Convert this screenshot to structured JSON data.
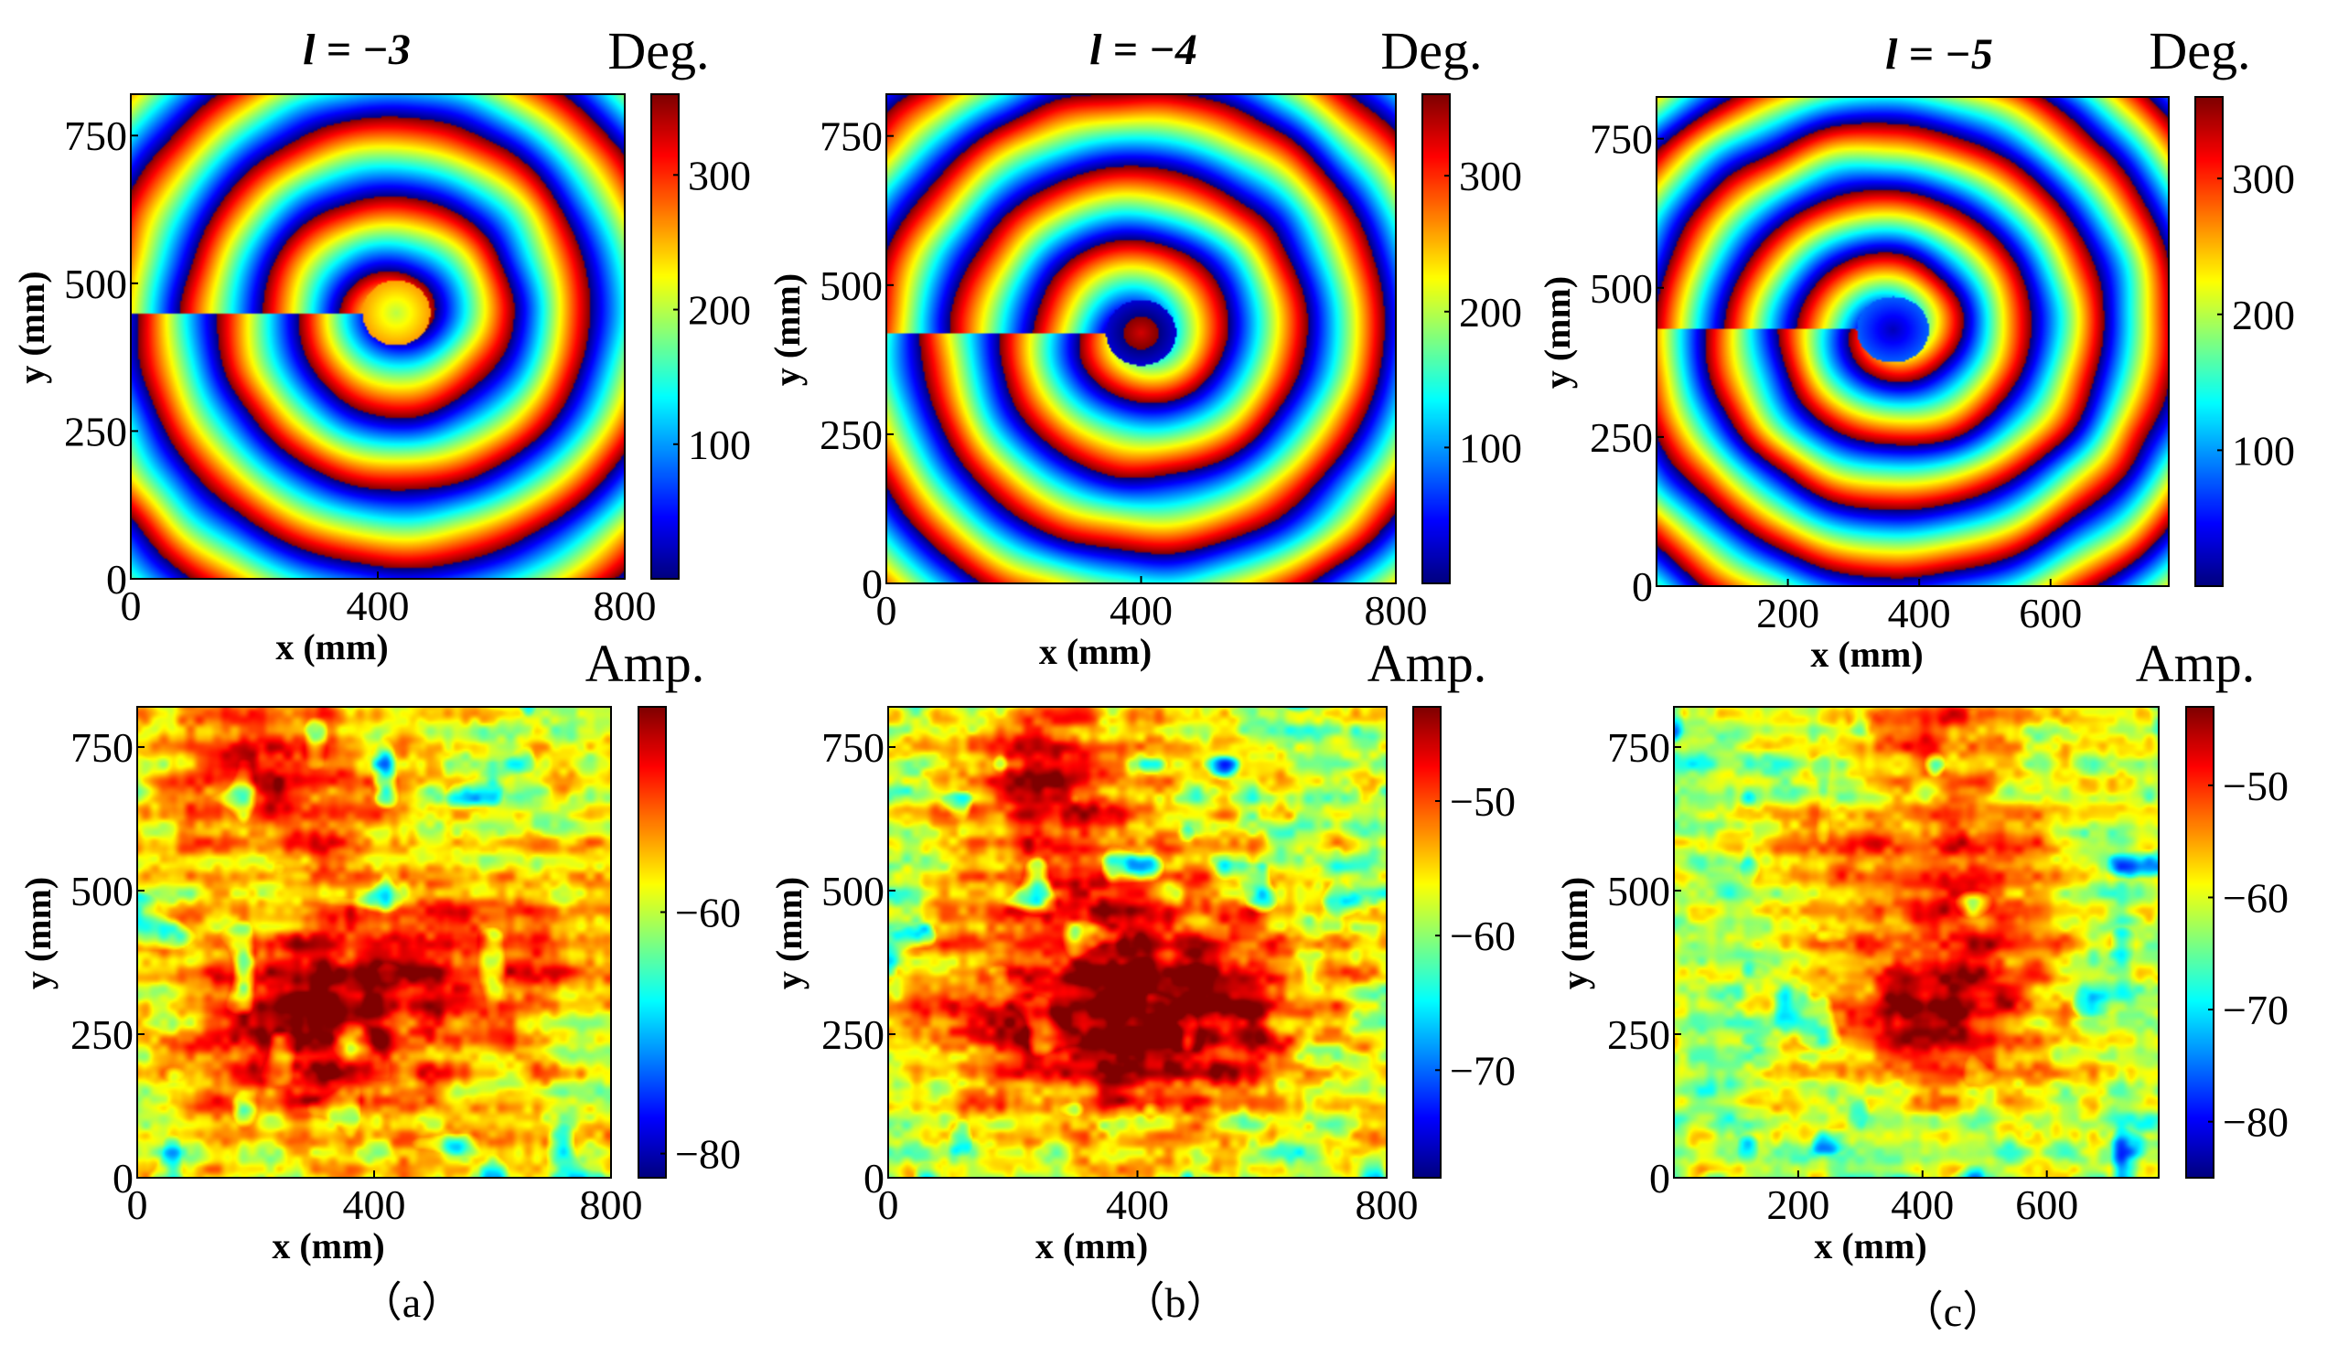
{
  "figure": {
    "panel_captions": [
      "（a）",
      "（b）",
      "（c）"
    ]
  },
  "colormap": {
    "name": "jet",
    "stops": [
      "#00007f",
      "#0000ff",
      "#007fff",
      "#00ffff",
      "#7fff7f",
      "#ffff00",
      "#ff7f00",
      "#ff0000",
      "#7f0000"
    ]
  },
  "chart_data": [
    {
      "type": "heatmap",
      "title": "l = −3",
      "colorbar_label": "Deg.",
      "xlabel": "x (mm)",
      "ylabel": "y (mm)",
      "xlim": [
        0,
        800
      ],
      "ylim": [
        0,
        820
      ],
      "xticks": [
        0,
        400,
        800
      ],
      "yticks": [
        0,
        250,
        500,
        750
      ],
      "clim": [
        0,
        360
      ],
      "cticks": [
        100,
        200,
        300
      ],
      "quantity": "phase",
      "pattern": {
        "center_x": 430,
        "center_y": 450,
        "ring_period_mm": 130,
        "spiral_turns": -3,
        "center_value": 200
      }
    },
    {
      "type": "heatmap",
      "title": "l = −4",
      "colorbar_label": "Deg.",
      "xlabel": "x (mm)",
      "ylabel": "y (mm)",
      "xlim": [
        0,
        800
      ],
      "ylim": [
        0,
        820
      ],
      "xticks": [
        0,
        400,
        800
      ],
      "yticks": [
        0,
        250,
        500,
        750
      ],
      "clim": [
        0,
        360
      ],
      "cticks": [
        100,
        200,
        300
      ],
      "quantity": "phase",
      "pattern": {
        "center_x": 400,
        "center_y": 420,
        "ring_period_mm": 125,
        "spiral_turns": -4,
        "center_value": 330
      }
    },
    {
      "type": "heatmap",
      "title": "l = −5",
      "colorbar_label": "Deg.",
      "xlabel": "x (mm)",
      "ylabel": "y (mm)",
      "xlim": [
        0,
        780
      ],
      "ylim": [
        0,
        820
      ],
      "xticks": [
        200,
        400,
        600
      ],
      "yticks": [
        0,
        250,
        500,
        750
      ],
      "clim": [
        0,
        360
      ],
      "cticks": [
        100,
        200,
        300
      ],
      "quantity": "phase",
      "pattern": {
        "center_x": 360,
        "center_y": 430,
        "ring_period_mm": 110,
        "spiral_turns": -5,
        "center_value": 20
      }
    },
    {
      "type": "heatmap",
      "title": "",
      "colorbar_label": "Amp.",
      "xlabel": "x (mm)",
      "ylabel": "y (mm)",
      "xlim": [
        0,
        800
      ],
      "ylim": [
        0,
        820
      ],
      "xticks": [
        0,
        400,
        800
      ],
      "yticks": [
        0,
        250,
        500,
        750
      ],
      "clim": [
        -82,
        -43
      ],
      "cticks": [
        -80,
        -60
      ],
      "quantity": "amplitude",
      "base": -58,
      "blobs": [
        {
          "x": 300,
          "y": 270,
          "sx": 150,
          "sy": 120,
          "amp": 15
        },
        {
          "x": 580,
          "y": 400,
          "sx": 130,
          "sy": 90,
          "amp": 9
        },
        {
          "x": 240,
          "y": 690,
          "sx": 110,
          "sy": 110,
          "amp": 11
        }
      ]
    },
    {
      "type": "heatmap",
      "title": "",
      "colorbar_label": "Amp.",
      "xlabel": "x (mm)",
      "ylabel": "y (mm)",
      "xlim": [
        0,
        800
      ],
      "ylim": [
        0,
        820
      ],
      "xticks": [
        0,
        400,
        800
      ],
      "yticks": [
        0,
        250,
        500,
        750
      ],
      "clim": [
        -78,
        -43
      ],
      "cticks": [
        -70,
        -60,
        -50
      ],
      "quantity": "amplitude",
      "base": -58,
      "blobs": [
        {
          "x": 480,
          "y": 300,
          "sx": 140,
          "sy": 120,
          "amp": 14
        },
        {
          "x": 260,
          "y": 270,
          "sx": 150,
          "sy": 110,
          "amp": 11
        },
        {
          "x": 260,
          "y": 640,
          "sx": 110,
          "sy": 140,
          "amp": 11
        }
      ]
    },
    {
      "type": "heatmap",
      "title": "",
      "colorbar_label": "Amp.",
      "xlabel": "x (mm)",
      "ylabel": "y (mm)",
      "xlim": [
        0,
        780
      ],
      "ylim": [
        0,
        820
      ],
      "xticks": [
        200,
        400,
        600
      ],
      "yticks": [
        0,
        250,
        500,
        750
      ],
      "clim": [
        -85,
        -43
      ],
      "cticks": [
        -80,
        -70,
        -60,
        -50
      ],
      "quantity": "amplitude",
      "base": -62,
      "blobs": [
        {
          "x": 400,
          "y": 280,
          "sx": 110,
          "sy": 90,
          "amp": 17
        },
        {
          "x": 510,
          "y": 470,
          "sx": 110,
          "sy": 160,
          "amp": 9
        },
        {
          "x": 330,
          "y": 560,
          "sx": 140,
          "sy": 70,
          "amp": 8
        },
        {
          "x": 400,
          "y": 790,
          "sx": 100,
          "sy": 60,
          "amp": 10
        }
      ]
    }
  ]
}
